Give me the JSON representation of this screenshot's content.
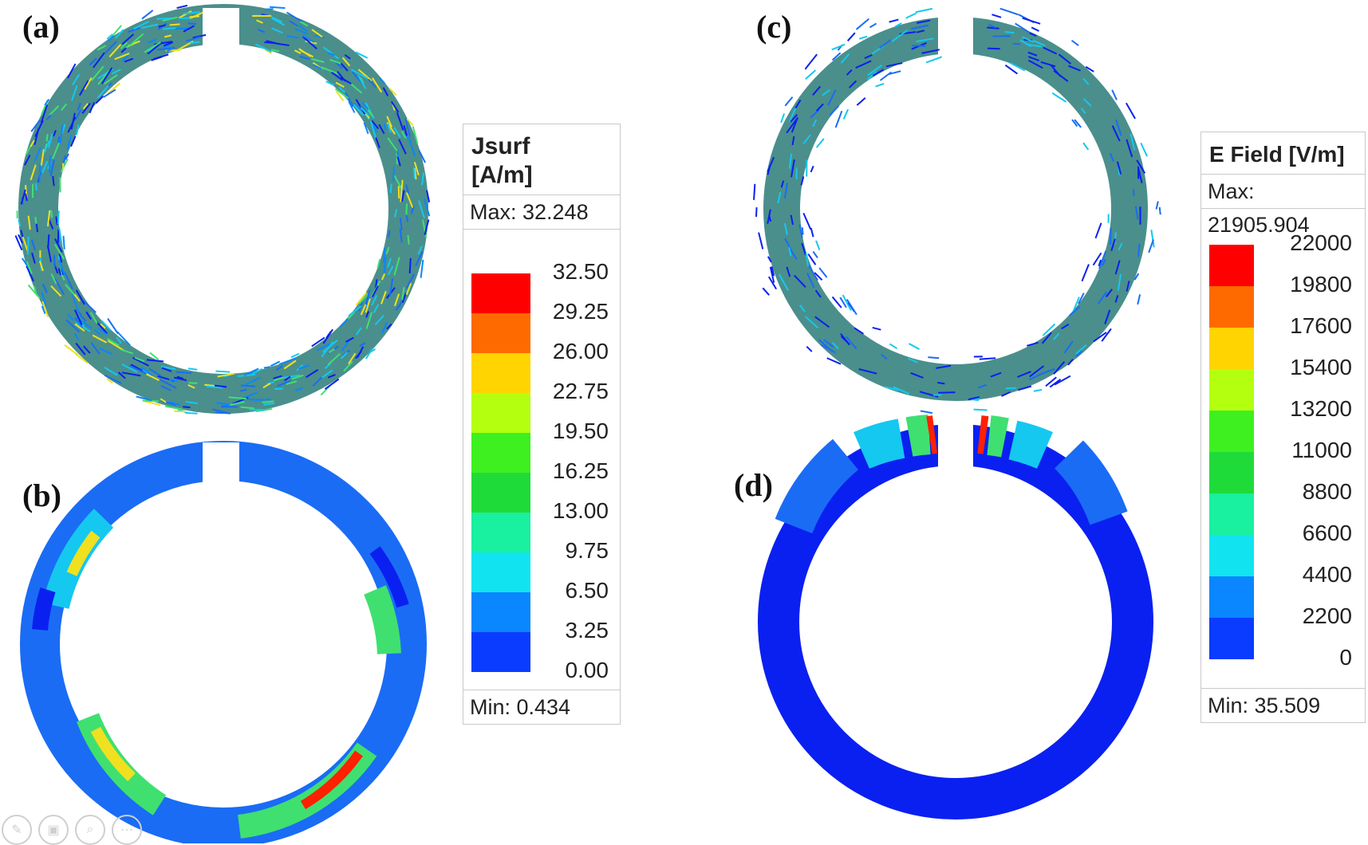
{
  "panels": {
    "a": "(a)",
    "b": "(b)",
    "c": "(c)",
    "d": "(d)"
  },
  "legend_left": {
    "title_line1": "Jsurf",
    "title_line2": "[A/m]",
    "max_text": "Max: 32.248",
    "min_text": "Min:  0.434",
    "ticks": [
      "32.50",
      "29.25",
      "26.00",
      "22.75",
      "19.50",
      "16.25",
      "13.00",
      "9.75",
      "6.50",
      "3.25",
      "0.00"
    ],
    "colors": [
      "#ff0000",
      "#ff6a00",
      "#ffd400",
      "#b4ff10",
      "#3ef020",
      "#1fdb3a",
      "#19f0a0",
      "#11e4f0",
      "#0a86ff",
      "#0a3cff"
    ]
  },
  "legend_right": {
    "title": "E Field [V/m]",
    "max_text": "Max: 21905.904",
    "min_text": "Min:      35.509",
    "ticks": [
      "22000",
      "19800",
      "17600",
      "15400",
      "13200",
      "11000",
      "8800",
      "6600",
      "4400",
      "2200",
      "0"
    ],
    "colors": [
      "#ff0000",
      "#ff6a00",
      "#ffd400",
      "#b4ff10",
      "#3ef020",
      "#1fdb3a",
      "#19f0a0",
      "#11e4f0",
      "#0a86ff",
      "#0a3cff"
    ]
  },
  "ring_colors": {
    "steel": "#4a8f8c",
    "blue_dark": "#0a20f0",
    "blue": "#1a6cf5",
    "cyan": "#14c8f0",
    "green": "#3fe070",
    "yellow": "#f0e020",
    "red": "#ff2000"
  },
  "toolbar": [
    "pencil-icon",
    "gallery-icon",
    "zoom-icon",
    "more-icon"
  ]
}
